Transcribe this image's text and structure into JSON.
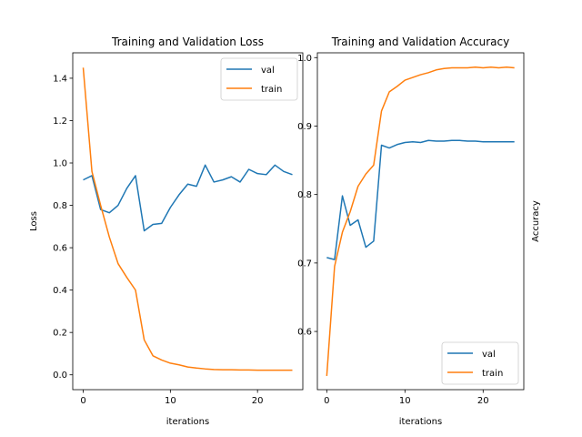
{
  "colors": {
    "val": "#1f77b4",
    "train": "#ff7f0e",
    "axes": "#000000",
    "background": "#ffffff"
  },
  "chart_data": [
    {
      "type": "line",
      "title": "Training and Validation Loss",
      "xlabel": "iterations",
      "ylabel": "Loss",
      "xlim": [
        -1.2,
        25.2
      ],
      "ylim": [
        -0.07,
        1.52
      ],
      "xticks": [
        0,
        10,
        20
      ],
      "xtick_labels": [
        "0",
        "10",
        "20"
      ],
      "yticks": [
        0.0,
        0.2,
        0.4,
        0.6,
        0.8,
        1.0,
        1.2,
        1.4
      ],
      "ytick_labels": [
        "0.0",
        "0.2",
        "0.4",
        "0.6",
        "0.8",
        "1.0",
        "1.2",
        "1.4"
      ],
      "ylabel_side": "left",
      "grid": false,
      "legend_position": "upper right",
      "x": [
        0,
        1,
        2,
        3,
        4,
        5,
        6,
        7,
        8,
        9,
        10,
        11,
        12,
        13,
        14,
        15,
        16,
        17,
        18,
        19,
        20,
        21,
        22,
        23,
        24
      ],
      "series": [
        {
          "name": "val",
          "values": [
            0.92,
            0.94,
            0.78,
            0.765,
            0.8,
            0.88,
            0.94,
            0.68,
            0.71,
            0.715,
            0.79,
            0.85,
            0.9,
            0.89,
            0.99,
            0.91,
            0.92,
            0.935,
            0.91,
            0.97,
            0.95,
            0.945,
            0.99,
            0.96,
            0.945
          ]
        },
        {
          "name": "train",
          "values": [
            1.45,
            0.96,
            0.8,
            0.65,
            0.525,
            0.46,
            0.4,
            0.165,
            0.09,
            0.07,
            0.055,
            0.047,
            0.037,
            0.032,
            0.028,
            0.025,
            0.024,
            0.024,
            0.023,
            0.023,
            0.022,
            0.022,
            0.022,
            0.022,
            0.022
          ]
        }
      ]
    },
    {
      "type": "line",
      "title": "Training and Validation Accuracy",
      "xlabel": "iterations",
      "ylabel": "Accuracy",
      "xlim": [
        -1.2,
        25.2
      ],
      "ylim": [
        0.515,
        1.007
      ],
      "xticks": [
        0,
        10,
        20
      ],
      "xtick_labels": [
        "0",
        "10",
        "20"
      ],
      "yticks": [
        0.6,
        0.7,
        0.8,
        0.9,
        1.0
      ],
      "ytick_labels": [
        "0.6",
        "0.7",
        "0.8",
        "0.9",
        "1.0"
      ],
      "ylabel_side": "right",
      "grid": false,
      "legend_position": "lower right",
      "x": [
        0,
        1,
        2,
        3,
        4,
        5,
        6,
        7,
        8,
        9,
        10,
        11,
        12,
        13,
        14,
        15,
        16,
        17,
        18,
        19,
        20,
        21,
        22,
        23,
        24
      ],
      "series": [
        {
          "name": "val",
          "values": [
            0.708,
            0.705,
            0.798,
            0.755,
            0.763,
            0.723,
            0.732,
            0.872,
            0.868,
            0.873,
            0.876,
            0.877,
            0.876,
            0.879,
            0.878,
            0.878,
            0.879,
            0.879,
            0.878,
            0.878,
            0.877,
            0.877,
            0.877,
            0.877,
            0.877
          ]
        },
        {
          "name": "train",
          "values": [
            0.535,
            0.695,
            0.745,
            0.775,
            0.812,
            0.83,
            0.843,
            0.922,
            0.95,
            0.958,
            0.967,
            0.971,
            0.975,
            0.978,
            0.982,
            0.984,
            0.985,
            0.985,
            0.985,
            0.986,
            0.985,
            0.986,
            0.985,
            0.986,
            0.985
          ]
        }
      ]
    }
  ]
}
